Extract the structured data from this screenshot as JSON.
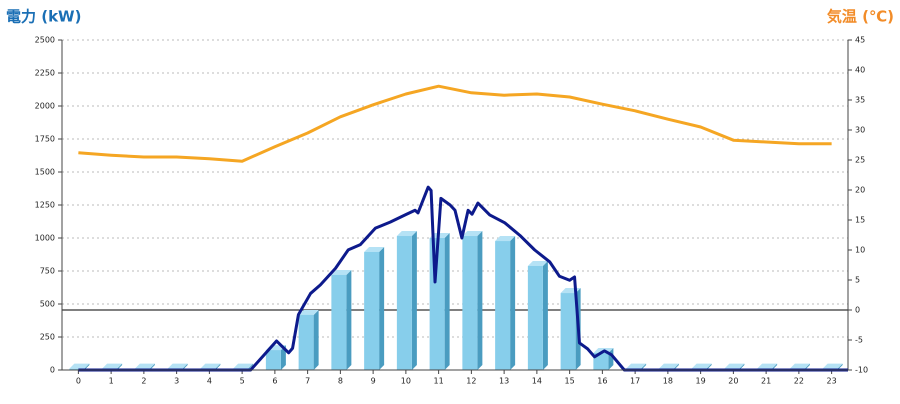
{
  "chart_data": {
    "type": "bar-line",
    "title": "電力 (kW)",
    "y2_title": "気温 (℃)",
    "categories": [
      "0",
      "1",
      "2",
      "3",
      "4",
      "5",
      "6",
      "7",
      "8",
      "9",
      "10",
      "11",
      "12",
      "13",
      "14",
      "15",
      "16",
      "17",
      "18",
      "19",
      "20",
      "21",
      "22",
      "23"
    ],
    "ylim": [
      0,
      2500
    ],
    "yticks": [
      0,
      250,
      500,
      750,
      1000,
      1250,
      1500,
      1750,
      2000,
      2250,
      2500
    ],
    "y2lim": [
      -10,
      45
    ],
    "y2ticks": [
      -10,
      -5,
      0,
      5,
      10,
      15,
      20,
      25,
      30,
      35,
      40,
      45
    ],
    "grid": true,
    "y2_refline": 0,
    "series": [
      {
        "type": "bar",
        "color": "#87ceeb",
        "values": [
          10,
          10,
          10,
          10,
          10,
          10,
          151,
          417,
          720,
          894,
          1015,
          1000,
          1015,
          977,
          788,
          583,
          129,
          10,
          10,
          10,
          10,
          10,
          10,
          10
        ]
      },
      {
        "type": "line",
        "color": "#0d1a8c",
        "x": [
          0,
          5.26,
          6.05,
          6.42,
          6.54,
          6.72,
          7.09,
          7.39,
          7.85,
          8.24,
          8.61,
          9.07,
          9.52,
          9.98,
          10.28,
          10.37,
          10.68,
          10.77,
          10.89,
          11.07,
          11.35,
          11.5,
          11.71,
          11.9,
          12.02,
          12.2,
          12.56,
          13.02,
          13.48,
          13.93,
          14.39,
          14.69,
          15.0,
          15.15,
          15.3,
          15.55,
          15.76,
          16.06,
          16.28,
          16.67,
          23.5
        ],
        "values": [
          0,
          0,
          220,
          130,
          165,
          420,
          580,
          645,
          770,
          910,
          950,
          1075,
          1120,
          1175,
          1210,
          1190,
          1385,
          1360,
          667,
          1300,
          1250,
          1210,
          1000,
          1210,
          1180,
          1265,
          1175,
          1115,
          1020,
          910,
          820,
          710,
          680,
          705,
          205,
          160,
          100,
          145,
          115,
          0,
          0
        ]
      },
      {
        "type": "line",
        "axis": "y2",
        "color": "#f5a623",
        "values": [
          26.2,
          25.8,
          25.5,
          25.5,
          25.2,
          24.8,
          27.2,
          29.5,
          32.2,
          34.2,
          36,
          37.3,
          36.2,
          35.8,
          36,
          35.5,
          34.3,
          33.2,
          31.8,
          30.5,
          28.3,
          28,
          27.7,
          27.7
        ]
      }
    ]
  }
}
